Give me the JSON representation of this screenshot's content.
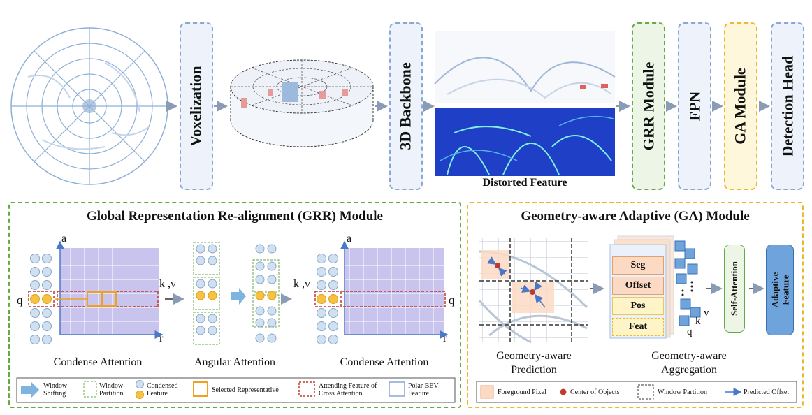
{
  "pipeline": {
    "voxelization": "Voxelization",
    "backbone": "3D Backbone",
    "distorted_feature": "Distorted Feature",
    "grr_module": "GRR Module",
    "fpn": "FPN",
    "ga_module": "GA Module",
    "detection_head": "Detection Head"
  },
  "grr_panel": {
    "title": "Global Representation Re-alignment (GRR) Module",
    "condense_attention_1": "Condense Attention",
    "angular_attention": "Angular Attention",
    "condense_attention_2": "Condense Attention",
    "axis_a": "a",
    "axis_r": "r",
    "q_label": "q",
    "kv_label": "k ,v",
    "legend": {
      "window_shifting": "Window Shifting",
      "window_partition": "Window Partition",
      "condensed_feature": "Condensed Feature",
      "selected_representative": "Selected Representative",
      "attending_feature": "Attending Feature of Cross Attention",
      "polar_bev_feature": "Polar BEV Feature"
    }
  },
  "ga_panel": {
    "title": "Geometry-aware Adaptive (GA) Module",
    "prediction": "Geometry-aware Prediction",
    "aggregation": "Geometry-aware Aggregation",
    "seg": "Seg",
    "offset": "Offset",
    "pos": "Pos",
    "feat": "Feat",
    "self_attention": "Self-Attention",
    "adaptive_feature": "Adaptive Feature",
    "q": "q",
    "k": "k",
    "v": "v",
    "legend": {
      "foreground_pixel": "Foreground Pixel",
      "center_of_objects": "Center of Objects",
      "window_partition": "Window Partition",
      "predicted_offset": "Predicted Offset"
    }
  },
  "colors": {
    "blue_box": "#8aa6d6",
    "green_box": "#66aa44",
    "yellow_box": "#e9b930",
    "foreground": "#fbd9c3",
    "condensed_yellow": "#f5c242",
    "attend_red": "#c0392b"
  }
}
